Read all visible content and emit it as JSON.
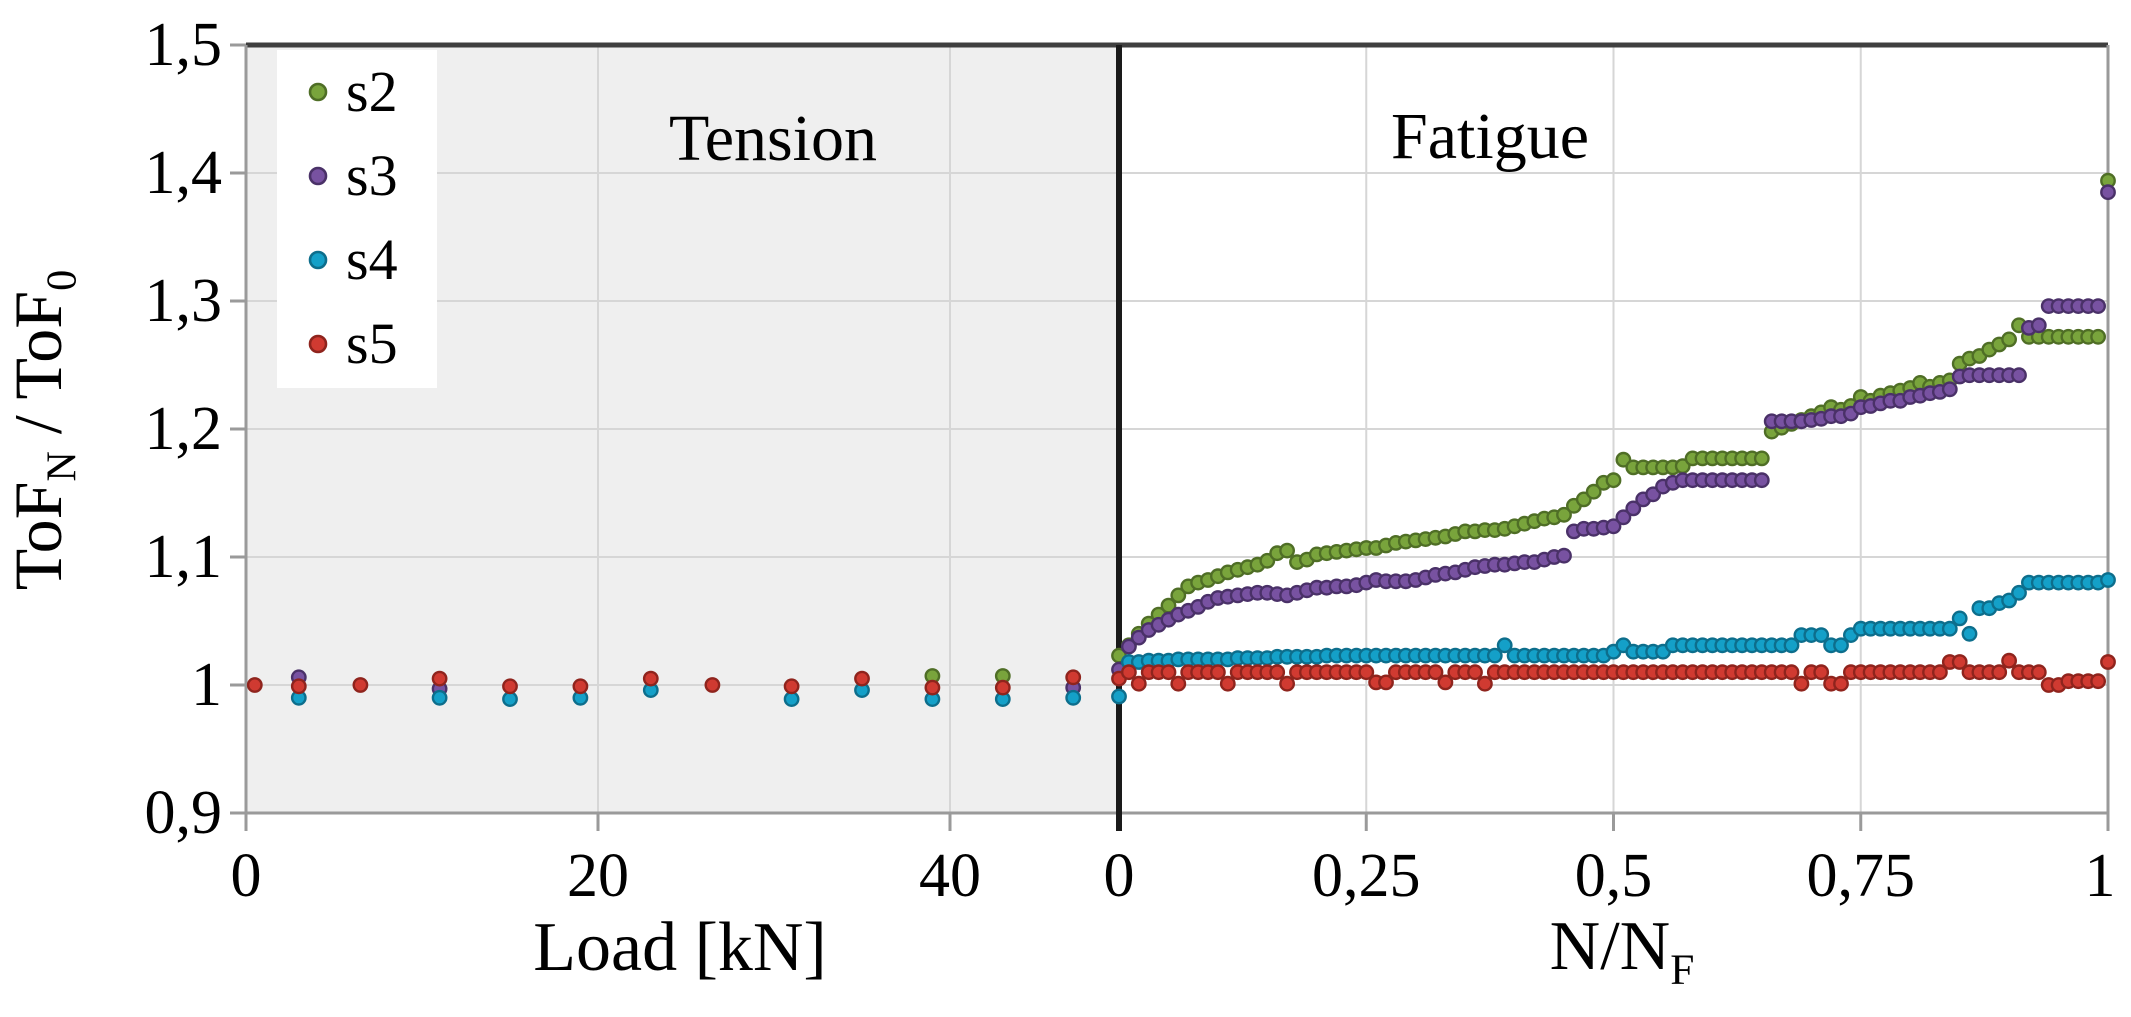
{
  "figure": {
    "tension_title": "Tension",
    "fatigue_title": "Fatigue",
    "y_axis_title_parts": {
      "main1": "ToF",
      "sub1": "N",
      "main2": " / ToF",
      "sub2": "0"
    },
    "x_axis_tension_title": "Load [kN]",
    "x_axis_fatigue_title_parts": {
      "main1": "N/N",
      "sub1": "F"
    }
  },
  "colors": {
    "tension_bg": "#efefef",
    "fatigue_bg": "#ffffff",
    "gridline": "#d6d6d6",
    "axis": "#9a9a9a",
    "top_border": "#3f3f3f",
    "divider": "#1a1a1a",
    "legend_bg": "#ffffff"
  },
  "legend": {
    "items": [
      {
        "id": "s2",
        "label": "s2",
        "fill": "#79a43c",
        "ring": "#4f6e26"
      },
      {
        "id": "s3",
        "label": "s3",
        "fill": "#7852a1",
        "ring": "#4a3168"
      },
      {
        "id": "s4",
        "label": "s4",
        "fill": "#14a0c8",
        "ring": "#0d6e8c"
      },
      {
        "id": "s5",
        "label": "s5",
        "fill": "#d03a31",
        "ring": "#8f241d"
      }
    ]
  },
  "chart_data": {
    "type": "scatter",
    "grid": true,
    "legend_position": "top-left",
    "y_axis": {
      "min": 0.9,
      "max": 1.5,
      "ticks": [
        {
          "v": 0.9,
          "label": "0,9"
        },
        {
          "v": 1.0,
          "label": "1"
        },
        {
          "v": 1.1,
          "label": "1,1"
        },
        {
          "v": 1.2,
          "label": "1,2"
        },
        {
          "v": 1.3,
          "label": "1,3"
        },
        {
          "v": 1.4,
          "label": "1,4"
        },
        {
          "v": 1.5,
          "label": "1,5"
        }
      ]
    },
    "series_meta": [
      {
        "id": "s2",
        "name": "s2",
        "fill": "#79a43c",
        "ring": "#4f6e26"
      },
      {
        "id": "s3",
        "name": "s3",
        "fill": "#7852a1",
        "ring": "#4a3168"
      },
      {
        "id": "s4",
        "name": "s4",
        "fill": "#14a0c8",
        "ring": "#0d6e8c"
      },
      {
        "id": "s5",
        "name": "s5",
        "fill": "#d03a31",
        "ring": "#8f241d"
      }
    ],
    "tension_panel": {
      "xlabel": "Load [kN]",
      "xlim": [
        0,
        49.6
      ],
      "x_ticks": [
        {
          "v": 0,
          "label": "0"
        },
        {
          "v": 20,
          "label": "20"
        },
        {
          "v": 40,
          "label": "40"
        }
      ],
      "gridline_x": [
        20,
        40
      ],
      "series": {
        "s2": [
          [
            39,
            1.007
          ],
          [
            43,
            1.007
          ]
        ],
        "s3": [
          [
            3,
            1.006
          ],
          [
            11,
            0.997
          ],
          [
            47,
            0.998
          ]
        ],
        "s4": [
          [
            3,
            0.99
          ],
          [
            11,
            0.99
          ],
          [
            15,
            0.989
          ],
          [
            19,
            0.99
          ],
          [
            23,
            0.996
          ],
          [
            31,
            0.989
          ],
          [
            35,
            0.996
          ],
          [
            39,
            0.989
          ],
          [
            43,
            0.989
          ],
          [
            47,
            0.99
          ]
        ],
        "s5": [
          [
            0.5,
            1.0
          ],
          [
            3,
            0.999
          ],
          [
            6.5,
            1.0
          ],
          [
            11,
            1.005
          ],
          [
            15,
            0.999
          ],
          [
            19,
            0.999
          ],
          [
            23,
            1.005
          ],
          [
            26.5,
            1.0
          ],
          [
            31,
            0.999
          ],
          [
            35,
            1.005
          ],
          [
            39,
            0.998
          ],
          [
            43,
            0.998
          ],
          [
            47,
            1.006
          ]
        ]
      }
    },
    "fatigue_panel": {
      "xlabel": "N/NF",
      "xlim": [
        0,
        1
      ],
      "x_ticks": [
        {
          "v": 0,
          "label": "0"
        },
        {
          "v": 0.25,
          "label": "0,25"
        },
        {
          "v": 0.5,
          "label": "0,5"
        },
        {
          "v": 0.75,
          "label": "0,75"
        },
        {
          "v": 1,
          "label": "1"
        }
      ],
      "gridline_x": [
        0.25,
        0.5,
        0.75
      ],
      "x_start": 0,
      "x_step": 0.01,
      "series": {
        "s2": [
          1.023,
          1.031,
          1.04,
          1.048,
          1.055,
          1.062,
          1.07,
          1.077,
          1.08,
          1.082,
          1.085,
          1.088,
          1.09,
          1.092,
          1.094,
          1.097,
          1.103,
          1.105,
          1.096,
          1.098,
          1.102,
          1.103,
          1.104,
          1.105,
          1.106,
          1.107,
          1.107,
          1.109,
          1.111,
          1.112,
          1.113,
          1.114,
          1.115,
          1.116,
          1.118,
          1.12,
          1.12,
          1.121,
          1.121,
          1.122,
          1.124,
          1.126,
          1.128,
          1.13,
          1.131,
          1.133,
          1.14,
          1.145,
          1.151,
          1.158,
          1.16,
          1.176,
          1.17,
          1.17,
          1.17,
          1.17,
          1.17,
          1.171,
          1.177,
          1.177,
          1.177,
          1.177,
          1.177,
          1.177,
          1.177,
          1.177,
          1.198,
          1.201,
          1.204,
          1.207,
          1.21,
          1.213,
          1.217,
          1.215,
          1.218,
          1.225,
          1.222,
          1.226,
          1.228,
          1.23,
          1.232,
          1.236,
          1.233,
          1.236,
          1.238,
          1.251,
          1.255,
          1.257,
          1.262,
          1.266,
          1.27,
          1.281,
          1.272,
          1.272,
          1.272,
          1.272,
          1.272,
          1.272,
          1.272,
          1.272,
          1.394
        ],
        "s3": [
          1.012,
          1.03,
          1.037,
          1.043,
          1.047,
          1.051,
          1.055,
          1.058,
          1.061,
          1.065,
          1.068,
          1.069,
          1.07,
          1.071,
          1.072,
          1.072,
          1.071,
          1.07,
          1.072,
          1.074,
          1.076,
          1.076,
          1.077,
          1.077,
          1.078,
          1.08,
          1.082,
          1.081,
          1.081,
          1.081,
          1.082,
          1.084,
          1.086,
          1.087,
          1.088,
          1.09,
          1.092,
          1.093,
          1.094,
          1.094,
          1.095,
          1.096,
          1.096,
          1.098,
          1.1,
          1.101,
          1.12,
          1.122,
          1.122,
          1.123,
          1.124,
          1.131,
          1.138,
          1.145,
          1.149,
          1.155,
          1.158,
          1.16,
          1.16,
          1.16,
          1.16,
          1.16,
          1.16,
          1.16,
          1.16,
          1.16,
          1.206,
          1.206,
          1.206,
          1.206,
          1.207,
          1.208,
          1.21,
          1.21,
          1.212,
          1.217,
          1.218,
          1.22,
          1.222,
          1.222,
          1.225,
          1.226,
          1.228,
          1.229,
          1.231,
          1.241,
          1.242,
          1.242,
          1.242,
          1.242,
          1.242,
          1.242,
          1.279,
          1.281,
          1.296,
          1.296,
          1.296,
          1.296,
          1.296,
          1.296,
          1.385
        ],
        "s4": [
          0.991,
          1.018,
          1.018,
          1.019,
          1.019,
          1.019,
          1.02,
          1.02,
          1.02,
          1.02,
          1.02,
          1.02,
          1.021,
          1.021,
          1.021,
          1.021,
          1.022,
          1.022,
          1.022,
          1.022,
          1.022,
          1.023,
          1.023,
          1.023,
          1.023,
          1.023,
          1.023,
          1.023,
          1.023,
          1.023,
          1.023,
          1.023,
          1.023,
          1.023,
          1.023,
          1.023,
          1.023,
          1.023,
          1.023,
          1.031,
          1.023,
          1.023,
          1.023,
          1.023,
          1.023,
          1.023,
          1.023,
          1.023,
          1.023,
          1.023,
          1.026,
          1.031,
          1.026,
          1.026,
          1.026,
          1.026,
          1.031,
          1.031,
          1.031,
          1.031,
          1.031,
          1.031,
          1.031,
          1.031,
          1.031,
          1.031,
          1.031,
          1.031,
          1.031,
          1.039,
          1.039,
          1.039,
          1.031,
          1.031,
          1.039,
          1.044,
          1.044,
          1.044,
          1.044,
          1.044,
          1.044,
          1.044,
          1.044,
          1.044,
          1.044,
          1.052,
          1.04,
          1.06,
          1.06,
          1.064,
          1.066,
          1.072,
          1.08,
          1.08,
          1.08,
          1.08,
          1.08,
          1.08,
          1.08,
          1.08,
          1.082
        ],
        "s5": [
          1.005,
          1.01,
          1.001,
          1.01,
          1.01,
          1.01,
          1.001,
          1.01,
          1.01,
          1.01,
          1.01,
          1.001,
          1.01,
          1.01,
          1.01,
          1.01,
          1.01,
          1.001,
          1.01,
          1.01,
          1.01,
          1.01,
          1.01,
          1.01,
          1.01,
          1.01,
          1.002,
          1.002,
          1.01,
          1.01,
          1.01,
          1.01,
          1.01,
          1.002,
          1.01,
          1.01,
          1.01,
          1.001,
          1.01,
          1.01,
          1.01,
          1.01,
          1.01,
          1.01,
          1.01,
          1.01,
          1.01,
          1.01,
          1.01,
          1.01,
          1.01,
          1.01,
          1.01,
          1.01,
          1.01,
          1.01,
          1.01,
          1.01,
          1.01,
          1.01,
          1.01,
          1.01,
          1.01,
          1.01,
          1.01,
          1.01,
          1.01,
          1.01,
          1.01,
          1.001,
          1.01,
          1.01,
          1.001,
          1.001,
          1.01,
          1.01,
          1.01,
          1.01,
          1.01,
          1.01,
          1.01,
          1.01,
          1.01,
          1.01,
          1.018,
          1.018,
          1.01,
          1.01,
          1.01,
          1.01,
          1.019,
          1.01,
          1.01,
          1.01,
          1.0,
          1.0,
          1.003,
          1.003,
          1.003,
          1.003,
          1.018
        ]
      }
    }
  }
}
